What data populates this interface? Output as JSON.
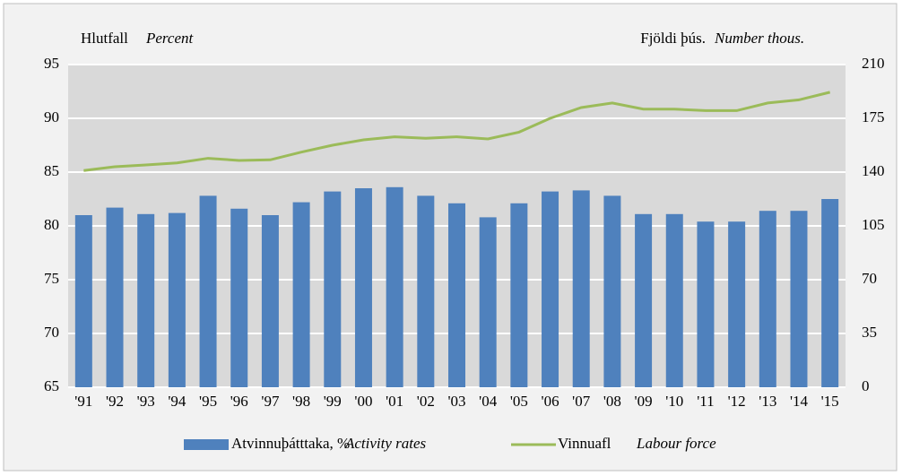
{
  "chart_data": {
    "type": "bar_line",
    "y_label": {
      "text": "Hlutfall",
      "italic": "Percent"
    },
    "y2_label": {
      "text": "Fjöldi þús.",
      "italic": "Number thous."
    },
    "categories": [
      "'91",
      "'92",
      "'93",
      "'94",
      "'95",
      "'96",
      "'97",
      "'98",
      "'99",
      "'00",
      "'01",
      "'02",
      "'03",
      "'04",
      "'05",
      "'06",
      "'07",
      "'08",
      "'09",
      "'10",
      "'11",
      "'12",
      "'13",
      "'14",
      "'15"
    ],
    "series": [
      {
        "name": "Atvinnuþátttaka, %",
        "name_italic": "Activity rates",
        "kind": "bar",
        "color": "#4f81bd",
        "values": [
          81.0,
          81.7,
          81.1,
          81.2,
          82.8,
          81.6,
          81.0,
          82.2,
          83.2,
          83.5,
          83.6,
          82.8,
          82.1,
          80.8,
          82.1,
          83.2,
          83.3,
          82.8,
          81.1,
          81.1,
          80.4,
          80.4,
          81.4,
          81.4,
          82.5
        ]
      },
      {
        "name": "Vinnuafl",
        "name_italic": "Labour force",
        "kind": "line",
        "axis": "y2",
        "color": "#9bbb59",
        "values": [
          141,
          143.5,
          144.7,
          146,
          149,
          147.6,
          148,
          153,
          157.5,
          161,
          163,
          162,
          163,
          161.6,
          166,
          175,
          182,
          185,
          181,
          181,
          180,
          180,
          185,
          187,
          192
        ]
      }
    ],
    "ylim": [
      65,
      95
    ],
    "yticks": [
      65,
      70,
      75,
      80,
      85,
      90,
      95
    ],
    "y2lim": [
      0,
      210
    ],
    "y2ticks": [
      0,
      35,
      70,
      105,
      140,
      175,
      210
    ],
    "grid": true
  }
}
